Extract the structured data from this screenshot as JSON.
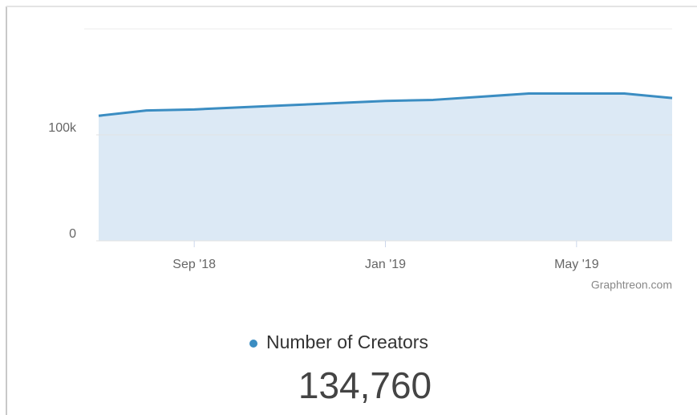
{
  "chart_data": {
    "type": "area",
    "x": [
      "2018-07",
      "2018-08",
      "2018-09",
      "2018-10",
      "2018-11",
      "2018-12",
      "2019-01",
      "2019-02",
      "2019-03",
      "2019-04",
      "2019-05",
      "2019-06",
      "2019-07"
    ],
    "series": [
      {
        "name": "Number of Creators",
        "color": "#3b8dc2",
        "values": [
          118000,
          123000,
          124000,
          126000,
          128000,
          130000,
          132000,
          133000,
          136000,
          139000,
          139000,
          139000,
          134760
        ]
      }
    ],
    "xlim": [
      "2018-07",
      "2019-07"
    ],
    "xticks": [
      {
        "value": "2018-09",
        "label": "Sep '18"
      },
      {
        "value": "2019-01",
        "label": "Jan '19"
      },
      {
        "value": "2019-05",
        "label": "May '19"
      }
    ],
    "ylim": [
      0,
      200000
    ],
    "yticks": [
      0,
      {
        "value": 100000,
        "label": "100k"
      }
    ],
    "grid": true,
    "fill_color": "#dce9f5",
    "credit": "Graphtreon.com",
    "current_value": "134,760"
  }
}
